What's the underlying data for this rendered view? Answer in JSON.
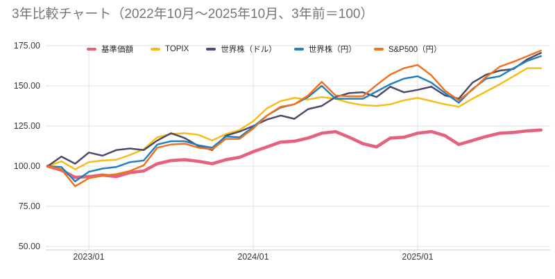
{
  "title": "3年比較チャート（2022年10月～2025年10月、3年前＝100）",
  "colors": {
    "title_text": "#757575",
    "axis_text": "#373737",
    "gridline": "#e2e2e2",
    "axis_line": "#cccccc",
    "background": "#ffffff",
    "fund_pink": "#e4627d",
    "topix_yellow": "#f7bd16",
    "world_usd_navy": "#4c4a66",
    "world_jpy_blue": "#2380bf",
    "sp500_jpy_orange": "#f2711c"
  },
  "axes": {
    "y_tick_labels": [
      "175.00",
      "150.00",
      "125.00",
      "100.00",
      "75.00",
      "50.00"
    ],
    "x_tick_labels": [
      "2023/01",
      "2024/01",
      "2025/01"
    ]
  },
  "chart_data": {
    "type": "line",
    "title": "3年比較チャート（2022年10月～2025年10月、3年前＝100）",
    "xlabel": "",
    "ylabel": "",
    "ylim": [
      50,
      175
    ],
    "y_ticks": [
      175,
      150,
      125,
      100,
      75,
      50
    ],
    "grid": true,
    "legend_position": "top",
    "x_unit": "month",
    "x": [
      "2022/10",
      "2022/11",
      "2022/12",
      "2023/01",
      "2023/02",
      "2023/03",
      "2023/04",
      "2023/05",
      "2023/06",
      "2023/07",
      "2023/08",
      "2023/09",
      "2023/10",
      "2023/11",
      "2023/12",
      "2024/01",
      "2024/02",
      "2024/03",
      "2024/04",
      "2024/05",
      "2024/06",
      "2024/07",
      "2024/08",
      "2024/09",
      "2024/10",
      "2024/11",
      "2024/12",
      "2025/01",
      "2025/02",
      "2025/03",
      "2025/04",
      "2025/05",
      "2025/06",
      "2025/07",
      "2025/08",
      "2025/09",
      "2025/10"
    ],
    "x_gridline_indices": [
      3,
      15,
      27
    ],
    "series": [
      {
        "name": "基準価額",
        "color": "#e4627d",
        "line_width": 4.6,
        "values": [
          100,
          97.5,
          93,
          93.5,
          94.5,
          93.5,
          96,
          97,
          101.5,
          103.5,
          104,
          103,
          101.5,
          104,
          105.5,
          109,
          112,
          115,
          115.5,
          117.5,
          120.5,
          121.5,
          118,
          114,
          112,
          117.5,
          118,
          120.5,
          121.5,
          119,
          113.5,
          116,
          118.5,
          120.5,
          121,
          122,
          122.5
        ]
      },
      {
        "name": "TOPIX",
        "color": "#f7bd16",
        "line_width": 2.5,
        "values": [
          100,
          103,
          98,
          102.5,
          103.5,
          104,
          107,
          110.5,
          118,
          120,
          120.5,
          119.5,
          116,
          120,
          122.5,
          128,
          136,
          140.5,
          142.5,
          141.5,
          143,
          142,
          139.5,
          138,
          137.5,
          138.5,
          141,
          142.5,
          140.5,
          138.5,
          137,
          142,
          146.5,
          151,
          156,
          161,
          161
        ]
      },
      {
        "name": "世界株（ドル）",
        "color": "#4c4a66",
        "line_width": 2.5,
        "values": [
          100,
          106,
          101.5,
          108.5,
          106.5,
          110,
          111,
          110,
          116,
          120.5,
          117.5,
          112.5,
          110,
          119,
          121.5,
          125,
          129,
          131.5,
          129.5,
          135.5,
          137.5,
          143,
          145.5,
          146,
          143,
          149.5,
          146,
          147.5,
          149.5,
          144,
          142,
          152,
          157,
          159.5,
          160.5,
          166.5,
          170.5
        ]
      },
      {
        "name": "世界株（円）",
        "color": "#2380bf",
        "line_width": 2.5,
        "values": [
          100,
          99.5,
          90.5,
          96.5,
          98.5,
          99.5,
          102.5,
          103.5,
          113.5,
          115.5,
          115.5,
          113,
          111.5,
          118.5,
          118,
          124.5,
          131.5,
          136.5,
          138.5,
          143,
          150,
          142,
          142,
          142,
          146.5,
          151,
          154.5,
          156,
          152,
          145.5,
          139.5,
          148,
          154.5,
          156,
          161,
          165.5,
          168.5
        ]
      },
      {
        "name": "S&P500（円）",
        "color": "#f2711c",
        "line_width": 2.5,
        "values": [
          100,
          98,
          87.5,
          92.5,
          94,
          95,
          97,
          100.5,
          111.5,
          113.5,
          114,
          111.5,
          110.5,
          117,
          117,
          123.5,
          131.5,
          137,
          138.5,
          144,
          152.5,
          144,
          143.5,
          143.5,
          150.5,
          157,
          161,
          163,
          156.5,
          147,
          141,
          147.5,
          155.5,
          162,
          165,
          168.5,
          172
        ]
      }
    ]
  }
}
